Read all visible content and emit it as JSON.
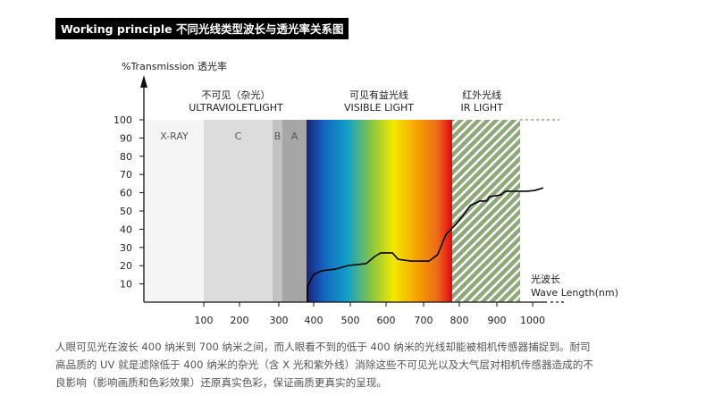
{
  "title": "Working principle 不同光线类型波长与透光率关系图",
  "chart_data": {
    "type": "line",
    "ylabel": "%Transmission 透光率",
    "xlabel_cn": "光波长",
    "xlabel": "Wave Length(nm)",
    "x_ticks": [
      100,
      200,
      300,
      400,
      500,
      600,
      700,
      800,
      900,
      1000
    ],
    "y_ticks": [
      10,
      20,
      30,
      40,
      50,
      60,
      70,
      80,
      90,
      100
    ],
    "ylim": [
      0,
      100
    ],
    "bands": [
      {
        "label": "X-RAY",
        "from": 0,
        "to": 100,
        "color": "#f5f5f5"
      },
      {
        "label": "C",
        "from": 100,
        "to": 280,
        "color": "#dcdcdc"
      },
      {
        "label": "B",
        "from": 280,
        "to": 315,
        "color": "#c2c2c2"
      },
      {
        "label": "A",
        "from": 315,
        "to": 380,
        "color": "#a6a6a6"
      },
      {
        "label": "",
        "from": 380,
        "to": 780,
        "color": "spectrum"
      },
      {
        "label": "",
        "from": 780,
        "to": 960,
        "color": "#8fa87a"
      }
    ],
    "region_labels": [
      {
        "cn": "不可见（杂光）",
        "en": "ULTRAVIOLETLIGHT"
      },
      {
        "cn": "可见有益光线",
        "en": "VISIBLE LIGHT"
      },
      {
        "cn": "红外光线",
        "en": "IR LIGHT"
      }
    ],
    "series": [
      {
        "name": "transmission",
        "x": [
          383,
          383,
          400,
          422,
          459,
          495,
          544,
          568,
          585,
          617,
          632,
          666,
          715,
          739,
          763,
          788,
          812,
          829,
          854,
          873,
          880,
          910,
          922,
          983,
          1007,
          1029
        ],
        "y": [
          0,
          8.8,
          15.2,
          17.2,
          18.1,
          20.1,
          21.1,
          25,
          27,
          27,
          23.5,
          22.5,
          22.5,
          26,
          37.3,
          42.2,
          48,
          53,
          55.4,
          55.4,
          57.8,
          58.8,
          60.8,
          60.8,
          61.3,
          62.7
        ]
      }
    ]
  },
  "paragraph": [
    "人眼可见光在波长 400 纳米到 700 纳米之间，而人眼看不到的低于 400 纳米的光线却能被相机传感器捕捉到。耐司",
    "高品质的 UV 就是滤除低于 400 纳米的杂光（含 X 光和紫外线）消除这些不可见光以及大气层对相机传感器造成的不",
    "良影响（影响画质和色彩效果）还原真实色彩，保证画质更真实的呈现。"
  ]
}
